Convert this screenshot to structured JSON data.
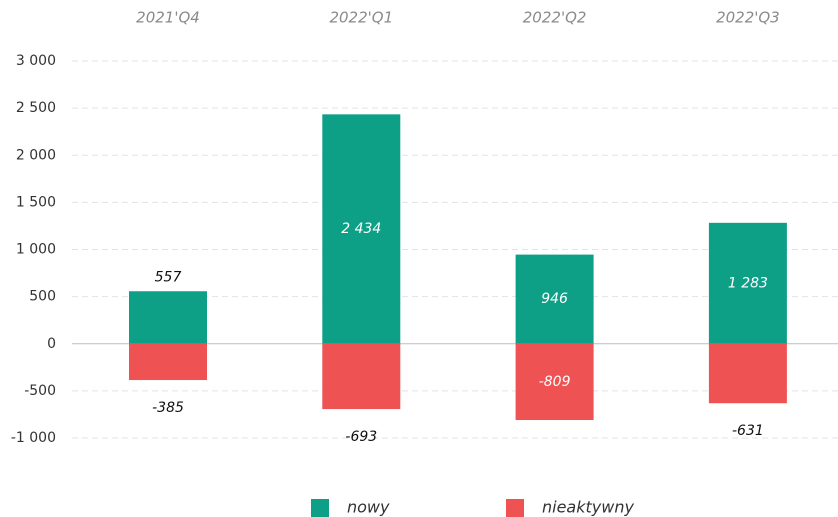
{
  "chart_data": {
    "type": "bar",
    "categories": [
      "2021'Q4",
      "2022'Q1",
      "2022'Q2",
      "2022'Q3"
    ],
    "series": [
      {
        "name": "nowy",
        "color": "#0e9f87",
        "values": [
          557,
          2434,
          946,
          1283
        ],
        "value_labels": [
          "557",
          "2 434",
          "946",
          "1 283"
        ]
      },
      {
        "name": "nieaktywny",
        "color": "#ee5253",
        "values": [
          -385,
          -693,
          -809,
          -631
        ],
        "value_labels": [
          "-385",
          "-693",
          "-809",
          "-631"
        ]
      }
    ],
    "ylim": [
      -1000,
      3000
    ],
    "yticks": [
      {
        "value": -1000,
        "label": "-1 000"
      },
      -500,
      0,
      500,
      {
        "value": 1000,
        "label": "1 000"
      },
      {
        "value": 1500,
        "label": "1 500"
      },
      {
        "value": 2000,
        "label": "2 000"
      },
      {
        "value": 2500,
        "label": "2 500"
      },
      {
        "value": 3000,
        "label": "3 000"
      }
    ],
    "grid": true,
    "legend": "bottom"
  }
}
